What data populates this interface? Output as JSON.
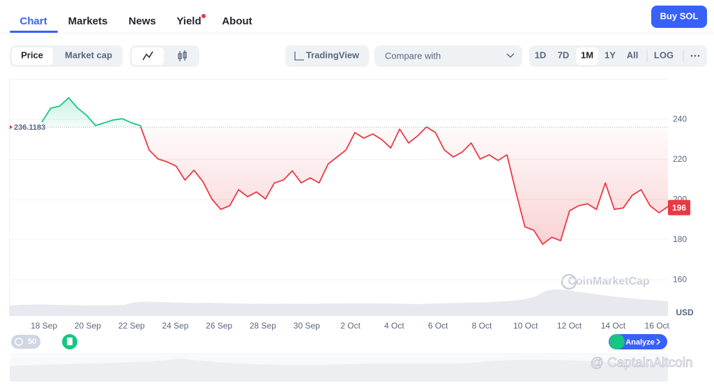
{
  "tabs": [
    "Chart",
    "Markets",
    "News",
    "Yield",
    "About"
  ],
  "buy_button": "Buy SOL",
  "toolbar": {
    "views": [
      "Price",
      "Market cap"
    ],
    "tradingview": "TradingView",
    "compare": "Compare with",
    "ranges": [
      "1D",
      "7D",
      "1M",
      "1Y",
      "All",
      "LOG"
    ]
  },
  "badges": {
    "events": "50",
    "analyze": "Analyze"
  },
  "watermark": "CoinMarketCap",
  "credit": "@ CaptainAltcoin",
  "chart_data": {
    "type": "line",
    "currency": "USD",
    "reference": {
      "value": 236.1183,
      "label": "236.1183"
    },
    "last_price": 196,
    "up_color": "#16c784",
    "down_color": "#ea3943",
    "xticks": [
      "18 Sep",
      "20 Sep",
      "22 Sep",
      "24 Sep",
      "26 Sep",
      "28 Sep",
      "30 Sep",
      "2 Oct",
      "4 Oct",
      "6 Oct",
      "8 Oct",
      "10 Oct",
      "12 Oct",
      "14 Oct",
      "16 Oct"
    ],
    "values": [
      238.6,
      245.6,
      246.6,
      250.8,
      245.6,
      242,
      236.9,
      238.3,
      239.7,
      240.3,
      238.3,
      236.9,
      224.7,
      220.2,
      218.8,
      216.7,
      209.7,
      214.6,
      209,
      200.3,
      195.1,
      196.9,
      204.9,
      201.4,
      203.8,
      200.3,
      208.3,
      209.7,
      214.3,
      208.3,
      210.8,
      208.3,
      217.7,
      221.2,
      224.7,
      233.4,
      230.6,
      232.7,
      229.9,
      225.7,
      235.1,
      228.2,
      231.7,
      236.2,
      233.4,
      224.7,
      221.2,
      223.7,
      228.2,
      220.2,
      222.3,
      219.5,
      222.3,
      203.8,
      186.4,
      184.7,
      177.7,
      181.2,
      179.5,
      194.4,
      196.9,
      197.9,
      195.1,
      208.3,
      195.1,
      195.8,
      202.1,
      204.9,
      196.9,
      193.4,
      196.5
    ],
    "ylim": [
      142.3,
      260.2
    ],
    "yticks": [
      160,
      180,
      200,
      220,
      240
    ],
    "grid": true
  }
}
